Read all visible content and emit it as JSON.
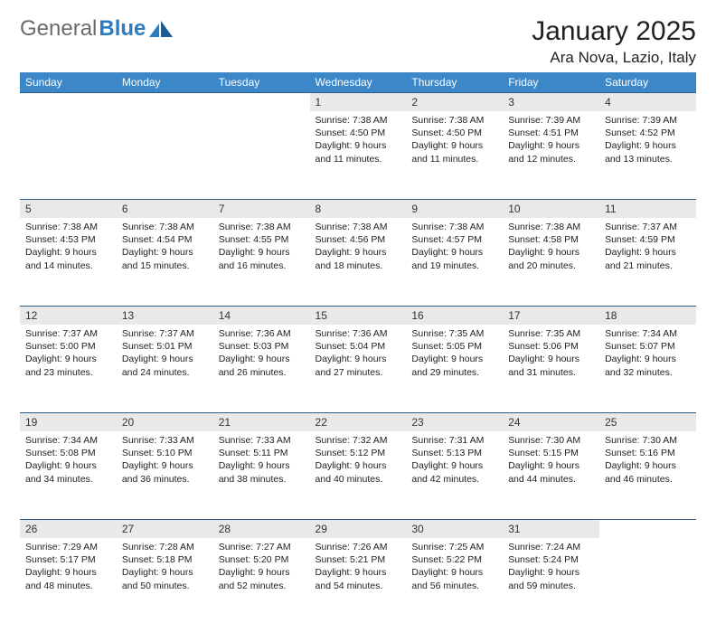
{
  "logo": {
    "gray": "General",
    "blue": "Blue"
  },
  "title": "January 2025",
  "location": "Ara Nova, Lazio, Italy",
  "colors": {
    "header_bg": "#3b87c8",
    "header_text": "#ffffff",
    "daynum_bg": "#e9e9e9",
    "row_border": "#2f5d86",
    "logo_gray": "#6b6b6b",
    "logo_blue": "#2f7bbf"
  },
  "weekdays": [
    "Sunday",
    "Monday",
    "Tuesday",
    "Wednesday",
    "Thursday",
    "Friday",
    "Saturday"
  ],
  "weeks": [
    {
      "cells": [
        {
          "empty": true
        },
        {
          "empty": true
        },
        {
          "empty": true
        },
        {
          "day": "1",
          "l1": "Sunrise: 7:38 AM",
          "l2": "Sunset: 4:50 PM",
          "l3": "Daylight: 9 hours",
          "l4": "and 11 minutes."
        },
        {
          "day": "2",
          "l1": "Sunrise: 7:38 AM",
          "l2": "Sunset: 4:50 PM",
          "l3": "Daylight: 9 hours",
          "l4": "and 11 minutes."
        },
        {
          "day": "3",
          "l1": "Sunrise: 7:39 AM",
          "l2": "Sunset: 4:51 PM",
          "l3": "Daylight: 9 hours",
          "l4": "and 12 minutes."
        },
        {
          "day": "4",
          "l1": "Sunrise: 7:39 AM",
          "l2": "Sunset: 4:52 PM",
          "l3": "Daylight: 9 hours",
          "l4": "and 13 minutes."
        }
      ]
    },
    {
      "cells": [
        {
          "day": "5",
          "l1": "Sunrise: 7:38 AM",
          "l2": "Sunset: 4:53 PM",
          "l3": "Daylight: 9 hours",
          "l4": "and 14 minutes."
        },
        {
          "day": "6",
          "l1": "Sunrise: 7:38 AM",
          "l2": "Sunset: 4:54 PM",
          "l3": "Daylight: 9 hours",
          "l4": "and 15 minutes."
        },
        {
          "day": "7",
          "l1": "Sunrise: 7:38 AM",
          "l2": "Sunset: 4:55 PM",
          "l3": "Daylight: 9 hours",
          "l4": "and 16 minutes."
        },
        {
          "day": "8",
          "l1": "Sunrise: 7:38 AM",
          "l2": "Sunset: 4:56 PM",
          "l3": "Daylight: 9 hours",
          "l4": "and 18 minutes."
        },
        {
          "day": "9",
          "l1": "Sunrise: 7:38 AM",
          "l2": "Sunset: 4:57 PM",
          "l3": "Daylight: 9 hours",
          "l4": "and 19 minutes."
        },
        {
          "day": "10",
          "l1": "Sunrise: 7:38 AM",
          "l2": "Sunset: 4:58 PM",
          "l3": "Daylight: 9 hours",
          "l4": "and 20 minutes."
        },
        {
          "day": "11",
          "l1": "Sunrise: 7:37 AM",
          "l2": "Sunset: 4:59 PM",
          "l3": "Daylight: 9 hours",
          "l4": "and 21 minutes."
        }
      ]
    },
    {
      "cells": [
        {
          "day": "12",
          "l1": "Sunrise: 7:37 AM",
          "l2": "Sunset: 5:00 PM",
          "l3": "Daylight: 9 hours",
          "l4": "and 23 minutes."
        },
        {
          "day": "13",
          "l1": "Sunrise: 7:37 AM",
          "l2": "Sunset: 5:01 PM",
          "l3": "Daylight: 9 hours",
          "l4": "and 24 minutes."
        },
        {
          "day": "14",
          "l1": "Sunrise: 7:36 AM",
          "l2": "Sunset: 5:03 PM",
          "l3": "Daylight: 9 hours",
          "l4": "and 26 minutes."
        },
        {
          "day": "15",
          "l1": "Sunrise: 7:36 AM",
          "l2": "Sunset: 5:04 PM",
          "l3": "Daylight: 9 hours",
          "l4": "and 27 minutes."
        },
        {
          "day": "16",
          "l1": "Sunrise: 7:35 AM",
          "l2": "Sunset: 5:05 PM",
          "l3": "Daylight: 9 hours",
          "l4": "and 29 minutes."
        },
        {
          "day": "17",
          "l1": "Sunrise: 7:35 AM",
          "l2": "Sunset: 5:06 PM",
          "l3": "Daylight: 9 hours",
          "l4": "and 31 minutes."
        },
        {
          "day": "18",
          "l1": "Sunrise: 7:34 AM",
          "l2": "Sunset: 5:07 PM",
          "l3": "Daylight: 9 hours",
          "l4": "and 32 minutes."
        }
      ]
    },
    {
      "cells": [
        {
          "day": "19",
          "l1": "Sunrise: 7:34 AM",
          "l2": "Sunset: 5:08 PM",
          "l3": "Daylight: 9 hours",
          "l4": "and 34 minutes."
        },
        {
          "day": "20",
          "l1": "Sunrise: 7:33 AM",
          "l2": "Sunset: 5:10 PM",
          "l3": "Daylight: 9 hours",
          "l4": "and 36 minutes."
        },
        {
          "day": "21",
          "l1": "Sunrise: 7:33 AM",
          "l2": "Sunset: 5:11 PM",
          "l3": "Daylight: 9 hours",
          "l4": "and 38 minutes."
        },
        {
          "day": "22",
          "l1": "Sunrise: 7:32 AM",
          "l2": "Sunset: 5:12 PM",
          "l3": "Daylight: 9 hours",
          "l4": "and 40 minutes."
        },
        {
          "day": "23",
          "l1": "Sunrise: 7:31 AM",
          "l2": "Sunset: 5:13 PM",
          "l3": "Daylight: 9 hours",
          "l4": "and 42 minutes."
        },
        {
          "day": "24",
          "l1": "Sunrise: 7:30 AM",
          "l2": "Sunset: 5:15 PM",
          "l3": "Daylight: 9 hours",
          "l4": "and 44 minutes."
        },
        {
          "day": "25",
          "l1": "Sunrise: 7:30 AM",
          "l2": "Sunset: 5:16 PM",
          "l3": "Daylight: 9 hours",
          "l4": "and 46 minutes."
        }
      ]
    },
    {
      "cells": [
        {
          "day": "26",
          "l1": "Sunrise: 7:29 AM",
          "l2": "Sunset: 5:17 PM",
          "l3": "Daylight: 9 hours",
          "l4": "and 48 minutes."
        },
        {
          "day": "27",
          "l1": "Sunrise: 7:28 AM",
          "l2": "Sunset: 5:18 PM",
          "l3": "Daylight: 9 hours",
          "l4": "and 50 minutes."
        },
        {
          "day": "28",
          "l1": "Sunrise: 7:27 AM",
          "l2": "Sunset: 5:20 PM",
          "l3": "Daylight: 9 hours",
          "l4": "and 52 minutes."
        },
        {
          "day": "29",
          "l1": "Sunrise: 7:26 AM",
          "l2": "Sunset: 5:21 PM",
          "l3": "Daylight: 9 hours",
          "l4": "and 54 minutes."
        },
        {
          "day": "30",
          "l1": "Sunrise: 7:25 AM",
          "l2": "Sunset: 5:22 PM",
          "l3": "Daylight: 9 hours",
          "l4": "and 56 minutes."
        },
        {
          "day": "31",
          "l1": "Sunrise: 7:24 AM",
          "l2": "Sunset: 5:24 PM",
          "l3": "Daylight: 9 hours",
          "l4": "and 59 minutes."
        },
        {
          "empty": true
        }
      ]
    }
  ]
}
